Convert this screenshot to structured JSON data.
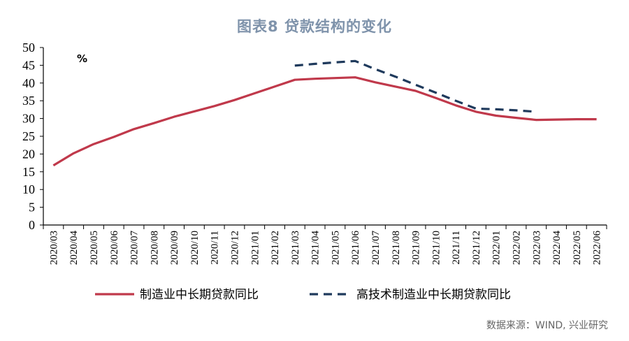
{
  "title": "图表8  贷款结构的变化",
  "source": "数据来源：WIND, 兴业研究",
  "colors": {
    "title": "#7f93ab",
    "series1": "#c0394b",
    "series2": "#1f3a5c"
  },
  "chart_data": {
    "type": "line",
    "title": "图表8  贷款结构的变化",
    "unit_label": "%",
    "ylim": [
      0,
      50
    ],
    "yticks": [
      0,
      5,
      10,
      15,
      20,
      25,
      30,
      35,
      40,
      45,
      50
    ],
    "x": [
      "2020/03",
      "2020/04",
      "2020/05",
      "2020/06",
      "2020/07",
      "2020/08",
      "2020/09",
      "2020/10",
      "2020/11",
      "2020/12",
      "2021/01",
      "2021/02",
      "2021/03",
      "2021/04",
      "2021/05",
      "2021/06",
      "2021/07",
      "2021/08",
      "2021/09",
      "2021/10",
      "2021/11",
      "2021/12",
      "2022/01",
      "2022/02",
      "2022/03",
      "2022/04",
      "2022/05",
      "2022/06"
    ],
    "series": [
      {
        "name": "制造业中长期贷款同比",
        "style": "solid",
        "color": "#c0394b",
        "values": [
          16.8,
          20.2,
          22.8,
          24.8,
          27.0,
          28.7,
          30.5,
          32.0,
          33.5,
          35.2,
          37.1,
          39.0,
          40.9,
          41.2,
          41.4,
          41.6,
          40.2,
          39.0,
          37.8,
          35.8,
          33.7,
          31.9,
          30.8,
          30.2,
          29.6,
          29.7,
          29.8,
          29.8
        ]
      },
      {
        "name": "高技术制造业中长期贷款同比",
        "style": "dashed",
        "color": "#1f3a5c",
        "values": [
          null,
          null,
          null,
          null,
          null,
          null,
          null,
          null,
          null,
          null,
          null,
          null,
          44.9,
          45.4,
          45.8,
          46.2,
          43.9,
          41.8,
          39.5,
          37.3,
          35.0,
          32.8,
          32.6,
          32.3,
          31.9,
          null,
          null,
          null
        ]
      }
    ],
    "grid": false,
    "legend": "bottom"
  }
}
